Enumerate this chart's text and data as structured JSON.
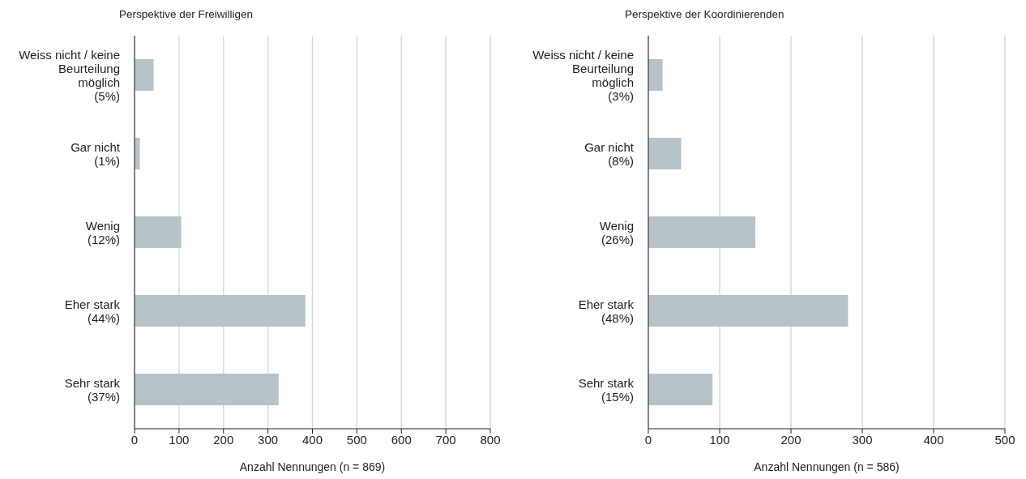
{
  "chart_data": [
    {
      "type": "bar",
      "orientation": "horizontal",
      "title": "Perspektive der Freiwilligen",
      "xlabel": "Anzahl Nennungen (n = 869)",
      "categories": [
        "Weiss nicht / keine\nBeurteilung\nmöglich\n(5%)",
        "Gar nicht\n(1%)",
        "Wenig\n(12%)",
        "Eher stark\n(44%)",
        "Sehr stark\n(37%)"
      ],
      "values": [
        43,
        12,
        105,
        384,
        324
      ],
      "color": "#b7c3c8",
      "xlim": [
        0,
        800
      ],
      "xticks": [
        0,
        100,
        200,
        300,
        400,
        500,
        600,
        700,
        800
      ],
      "grid": "x"
    },
    {
      "type": "bar",
      "orientation": "horizontal",
      "title": "Perspektive der Koordinierenden",
      "xlabel": "Anzahl Nennungen (n = 586)",
      "categories": [
        "Weiss nicht / keine\nBeurteilung\nmöglich\n(3%)",
        "Gar nicht\n(8%)",
        "Wenig\n(26%)",
        "Eher stark\n(48%)",
        "Sehr stark\n(15%)"
      ],
      "values": [
        20,
        46,
        150,
        280,
        90
      ],
      "color": "#b7c3c8",
      "xlim": [
        0,
        500
      ],
      "xticks": [
        0,
        100,
        200,
        300,
        400,
        500
      ],
      "grid": "x"
    }
  ]
}
